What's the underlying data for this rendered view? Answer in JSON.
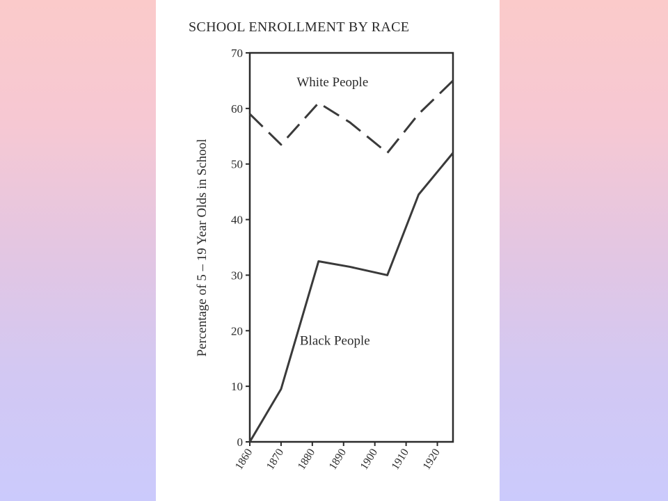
{
  "chart_data": {
    "type": "line",
    "title": "SCHOOL ENROLLMENT BY RACE",
    "ylabel": "Percentage of 5 – 19 Year Olds in School",
    "xlabel": "",
    "xlim": [
      1860,
      1925
    ],
    "ylim": [
      0,
      70
    ],
    "x_ticks": [
      "1860",
      "1870",
      "1880",
      "1890",
      "1900",
      "1910",
      "1920"
    ],
    "y_ticks": [
      "0",
      "10",
      "20",
      "30",
      "40",
      "50",
      "60",
      "70"
    ],
    "grid": false,
    "series": [
      {
        "name": "White People",
        "style": "dashed",
        "x": [
          1860,
          1870,
          1882,
          1892,
          1904,
          1914,
          1925
        ],
        "y": [
          59,
          53.5,
          61,
          57.5,
          52,
          59,
          65
        ]
      },
      {
        "name": "Black People",
        "style": "solid",
        "x": [
          1860,
          1870,
          1882,
          1892,
          1904,
          1914,
          1925
        ],
        "y": [
          0,
          9.5,
          32.5,
          31.5,
          30,
          44.5,
          52
        ]
      }
    ]
  }
}
